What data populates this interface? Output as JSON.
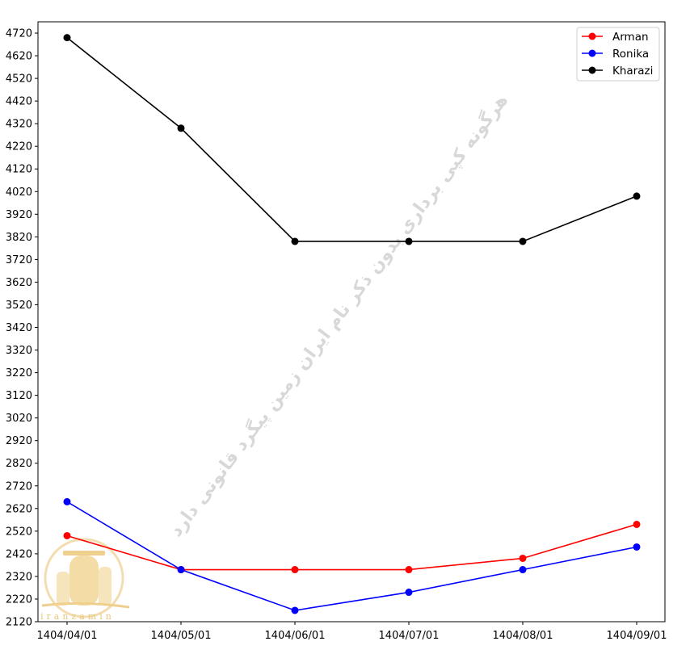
{
  "chart_data": {
    "type": "line",
    "categories": [
      "1404/04/01",
      "1404/05/01",
      "1404/06/01",
      "1404/07/01",
      "1404/08/01",
      "1404/09/01"
    ],
    "series": [
      {
        "name": "Arman",
        "color": "#ff0000",
        "values": [
          2500,
          2350,
          2350,
          2350,
          2400,
          2550
        ]
      },
      {
        "name": "Ronika",
        "color": "#0000ff",
        "values": [
          2650,
          2350,
          2170,
          2250,
          2350,
          2450
        ]
      },
      {
        "name": "Kharazi",
        "color": "#000000",
        "values": [
          4700,
          4300,
          3800,
          3800,
          3800,
          4000
        ]
      }
    ],
    "ylim": [
      2120,
      4770
    ],
    "yticks": [
      2120,
      2220,
      2320,
      2420,
      2520,
      2620,
      2720,
      2820,
      2920,
      3020,
      3120,
      3220,
      3320,
      3420,
      3520,
      3620,
      3720,
      3820,
      3920,
      4020,
      4120,
      4220,
      4320,
      4420,
      4520,
      4620,
      4720
    ],
    "legend_position": "top-right",
    "grid": false
  },
  "watermark": {
    "text": "هرگونه کپی برداری بدون ذکر نام ایران زمین پیگرد قانونی دارد"
  },
  "logo": {
    "text": "iranzamin"
  }
}
